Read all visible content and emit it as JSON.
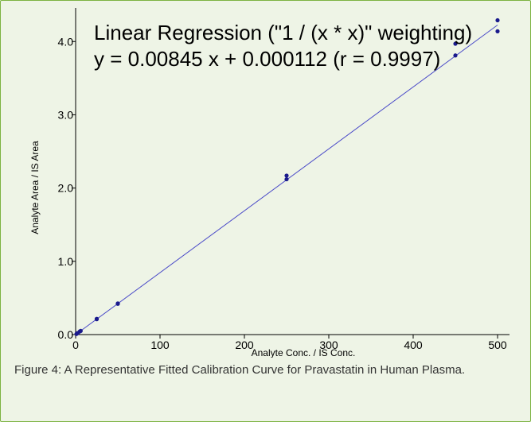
{
  "caption": "Figure 4: A Representative Fitted Calibration Curve for Pravastatin in Human Plasma.",
  "chart_data": {
    "type": "scatter",
    "title": "Linear Regression (\"1  / (x * x)\" weighting)",
    "subtitle": "y = 0.00845 x + 0.000112 (r = 0.9997)",
    "xlabel": "Analyte Conc. / IS Conc.",
    "ylabel": "Analyte Area / IS Area",
    "xlim": [
      0,
      500
    ],
    "ylim": [
      0,
      4.35
    ],
    "x_ticks": [
      0,
      100,
      200,
      300,
      400,
      500
    ],
    "x_tick_labels": [
      "0",
      "100",
      "200",
      "300",
      "400",
      "500"
    ],
    "y_ticks": [
      0,
      1,
      2,
      3,
      4
    ],
    "y_tick_labels": [
      "0.0",
      "1.0",
      "2.0",
      "3.0",
      "4.0"
    ],
    "grid": false,
    "point_color": "#1a1a8c",
    "line_color": "#4a4ac8",
    "fit": {
      "slope": 0.00845,
      "intercept": 0.000112,
      "x_range": [
        0,
        500
      ]
    },
    "points": [
      {
        "x": 1,
        "y": 0.0085
      },
      {
        "x": 2,
        "y": 0.018
      },
      {
        "x": 2.5,
        "y": 0.021
      },
      {
        "x": 5,
        "y": 0.043
      },
      {
        "x": 6,
        "y": 0.05
      },
      {
        "x": 25,
        "y": 0.21
      },
      {
        "x": 25,
        "y": 0.215
      },
      {
        "x": 50,
        "y": 0.42
      },
      {
        "x": 50,
        "y": 0.425
      },
      {
        "x": 250,
        "y": 2.17
      },
      {
        "x": 250,
        "y": 2.12
      },
      {
        "x": 450,
        "y": 3.97
      },
      {
        "x": 450,
        "y": 3.81
      },
      {
        "x": 500,
        "y": 4.29
      },
      {
        "x": 500,
        "y": 4.14
      }
    ]
  }
}
